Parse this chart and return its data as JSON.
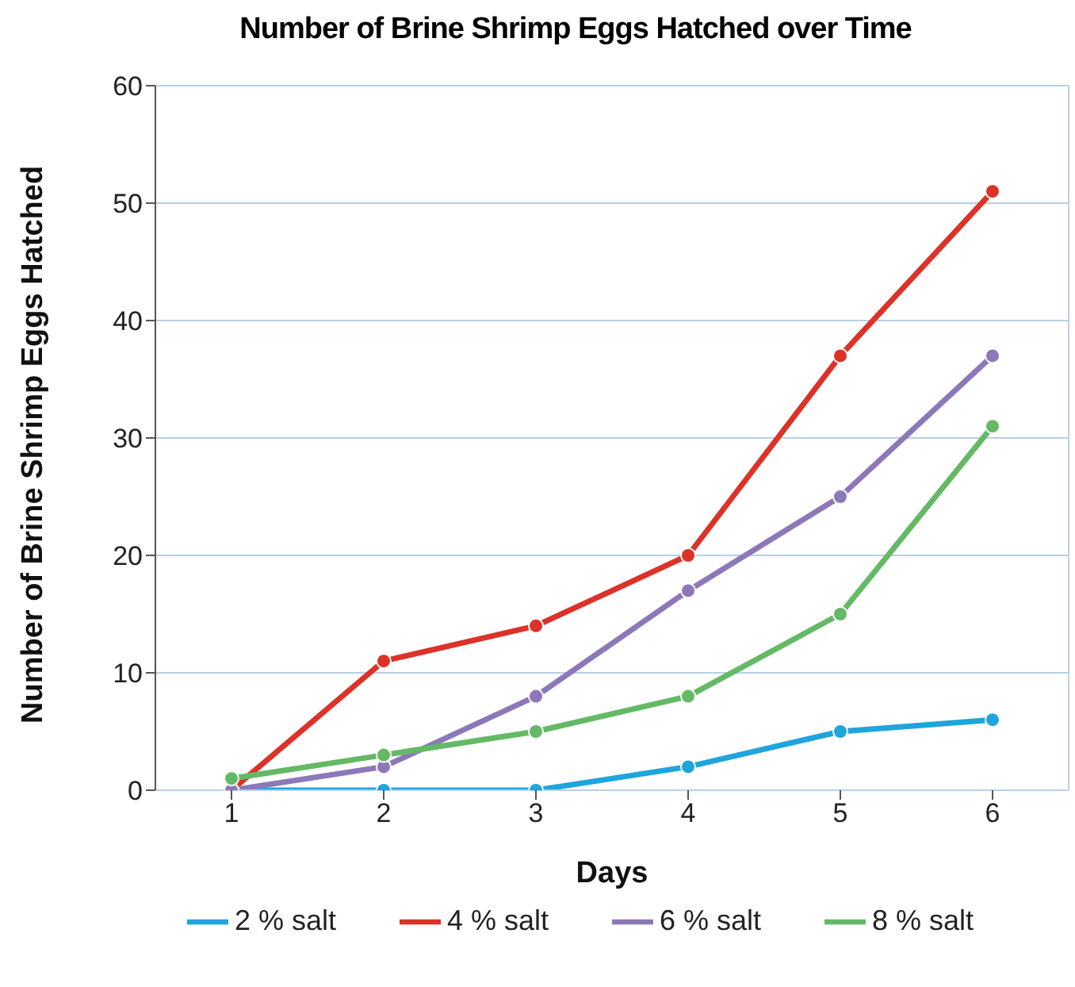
{
  "chart_data": {
    "type": "line",
    "title": "Number of Brine Shrimp Eggs Hatched over Time",
    "xlabel": "Days",
    "ylabel": "Number of Brine Shrimp Eggs Hatched",
    "x": [
      1,
      2,
      3,
      4,
      5,
      6
    ],
    "xlim": [
      0.5,
      6.5
    ],
    "xticks": [
      1,
      2,
      3,
      4,
      5,
      6
    ],
    "ylim": [
      0,
      60
    ],
    "yticks": [
      0,
      10,
      20,
      30,
      40,
      50,
      60
    ],
    "grid": "y",
    "legend": "bottom",
    "marker": "circle",
    "line_style": "solid",
    "series": [
      {
        "name": "2 % salt",
        "color": "#1ea5dc",
        "values": [
          0,
          0,
          0,
          2,
          5,
          6
        ]
      },
      {
        "name": "4 % salt",
        "color": "#dc3228",
        "values": [
          0,
          11,
          14,
          20,
          37,
          51
        ]
      },
      {
        "name": "6 % salt",
        "color": "#8c78b9",
        "values": [
          0,
          2,
          8,
          17,
          25,
          37
        ]
      },
      {
        "name": "8 % salt",
        "color": "#64b964",
        "values": [
          1,
          3,
          5,
          8,
          15,
          31
        ]
      }
    ]
  }
}
